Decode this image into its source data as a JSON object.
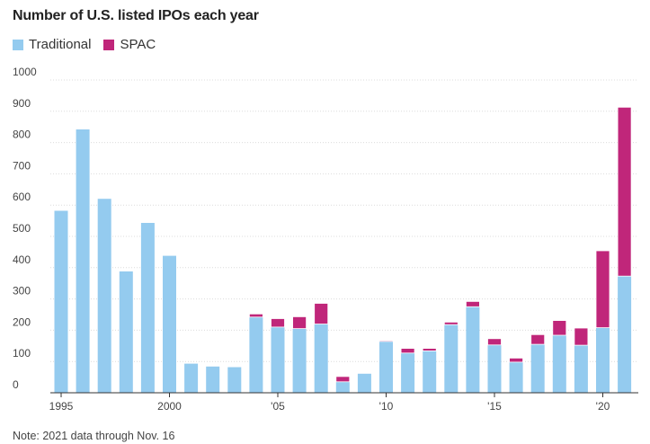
{
  "chart_data": {
    "type": "bar",
    "stacked": true,
    "title": "Number of U.S. listed IPOs each year",
    "note": "Note: 2021 data through Nov. 16",
    "categories": [
      1995,
      1996,
      1997,
      1998,
      1999,
      2000,
      2001,
      2002,
      2003,
      2004,
      2005,
      2006,
      2007,
      2008,
      2009,
      2010,
      2011,
      2012,
      2013,
      2014,
      2015,
      2016,
      2017,
      2018,
      2019,
      2020,
      2021
    ],
    "series": [
      {
        "name": "Traditional",
        "color": "#94cbef",
        "values": [
          582,
          842,
          620,
          388,
          543,
          438,
          93,
          84,
          82,
          242,
          210,
          205,
          220,
          35,
          61,
          164,
          127,
          134,
          218,
          275,
          153,
          98,
          155,
          184,
          152,
          208,
          373
        ]
      },
      {
        "name": "SPAC",
        "color": "#c0267a",
        "values": [
          0,
          0,
          0,
          0,
          0,
          0,
          0,
          0,
          0,
          10,
          27,
          38,
          66,
          17,
          0,
          3,
          15,
          8,
          8,
          17,
          20,
          13,
          31,
          47,
          55,
          246,
          540
        ]
      }
    ],
    "yticks": [
      0,
      100,
      200,
      300,
      400,
      500,
      600,
      700,
      800,
      900,
      1000
    ],
    "ylim": [
      0,
      1000
    ],
    "xtick_labels": [
      {
        "year": 1995,
        "label": "1995"
      },
      {
        "year": 2000,
        "label": "2000"
      },
      {
        "year": 2005,
        "label": "'05"
      },
      {
        "year": 2010,
        "label": "'10"
      },
      {
        "year": 2015,
        "label": "'15"
      },
      {
        "year": 2020,
        "label": "'20"
      }
    ],
    "grid": true,
    "legend_position": "top-left"
  }
}
